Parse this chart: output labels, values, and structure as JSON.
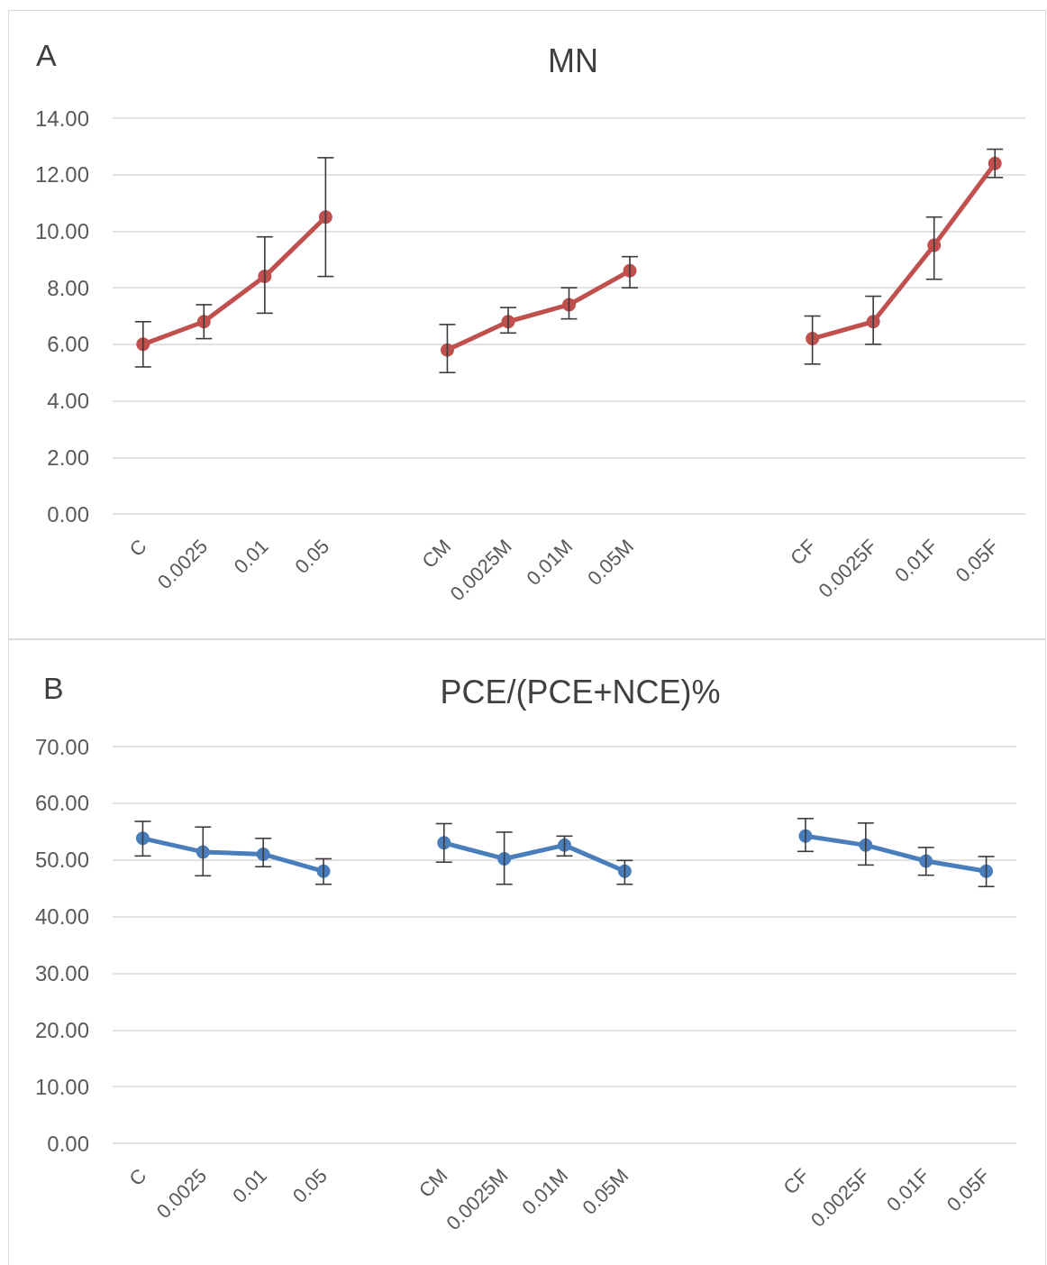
{
  "chart_data": [
    {
      "type": "line",
      "title": "MN",
      "annotations": [
        "A"
      ],
      "categories": [
        "C",
        "0.0025",
        "0.01",
        "0.05",
        null,
        "CM",
        "0.0025M",
        "0.01M",
        "0.05M",
        null,
        null,
        "CF",
        "0.0025F",
        "0.01F",
        "0.05F"
      ],
      "values": [
        6.0,
        6.8,
        8.4,
        10.5,
        null,
        5.8,
        6.8,
        7.4,
        8.6,
        null,
        null,
        6.2,
        6.8,
        9.5,
        12.4
      ],
      "errors": [
        [
          5.2,
          6.8
        ],
        [
          6.2,
          7.4
        ],
        [
          7.1,
          9.8
        ],
        [
          8.4,
          12.6
        ],
        null,
        [
          5.0,
          6.7
        ],
        [
          6.4,
          7.3
        ],
        [
          6.9,
          8.0
        ],
        [
          8.0,
          9.1
        ],
        null,
        null,
        [
          5.3,
          7.0
        ],
        [
          6.0,
          7.7
        ],
        [
          8.3,
          10.5
        ],
        [
          11.9,
          12.9
        ]
      ],
      "color": "#c0504d",
      "ylim": [
        0,
        14
      ],
      "yticks": [
        {
          "value": 0,
          "label": "0.00"
        },
        {
          "value": 2,
          "label": "2.00"
        },
        {
          "value": 4,
          "label": "4.00"
        },
        {
          "value": 6,
          "label": "6.00"
        },
        {
          "value": 8,
          "label": "8.00"
        },
        {
          "value": 10,
          "label": "10.00"
        },
        {
          "value": 12,
          "label": "12.00"
        },
        {
          "value": 14,
          "label": "14.00"
        }
      ],
      "grid": "y",
      "marker": "circle",
      "line_style": "solid"
    },
    {
      "type": "line",
      "title": "PCE/(PCE+NCE)%",
      "annotations": [
        "B"
      ],
      "categories": [
        "C",
        "0.0025",
        "0.01",
        "0.05",
        null,
        "CM",
        "0.0025M",
        "0.01M",
        "0.05M",
        null,
        null,
        "CF",
        "0.0025F",
        "0.01F",
        "0.05F"
      ],
      "values": [
        53.8,
        51.4,
        51.0,
        48.0,
        null,
        53.0,
        50.2,
        52.6,
        48.0,
        null,
        null,
        54.2,
        52.6,
        49.8,
        48.0
      ],
      "errors": [
        [
          50.7,
          56.8
        ],
        [
          47.2,
          55.8
        ],
        [
          48.8,
          53.8
        ],
        [
          45.7,
          50.2
        ],
        null,
        [
          49.6,
          56.4
        ],
        [
          45.7,
          54.9
        ],
        [
          50.7,
          54.2
        ],
        [
          45.7,
          49.9
        ],
        null,
        null,
        [
          51.5,
          57.3
        ],
        [
          49.1,
          56.5
        ],
        [
          47.3,
          52.2
        ],
        [
          45.3,
          50.6
        ]
      ],
      "color": "#4a7ebb",
      "ylim": [
        0,
        70
      ],
      "yticks": [
        {
          "value": 0,
          "label": "0.00"
        },
        {
          "value": 10,
          "label": "10.00"
        },
        {
          "value": 20,
          "label": "20.00"
        },
        {
          "value": 30,
          "label": "30.00"
        },
        {
          "value": 40,
          "label": "40.00"
        },
        {
          "value": 50,
          "label": "50.00"
        },
        {
          "value": 60,
          "label": "60.00"
        },
        {
          "value": 70,
          "label": "70.00"
        }
      ],
      "grid": "y",
      "marker": "circle",
      "line_style": "solid"
    }
  ]
}
